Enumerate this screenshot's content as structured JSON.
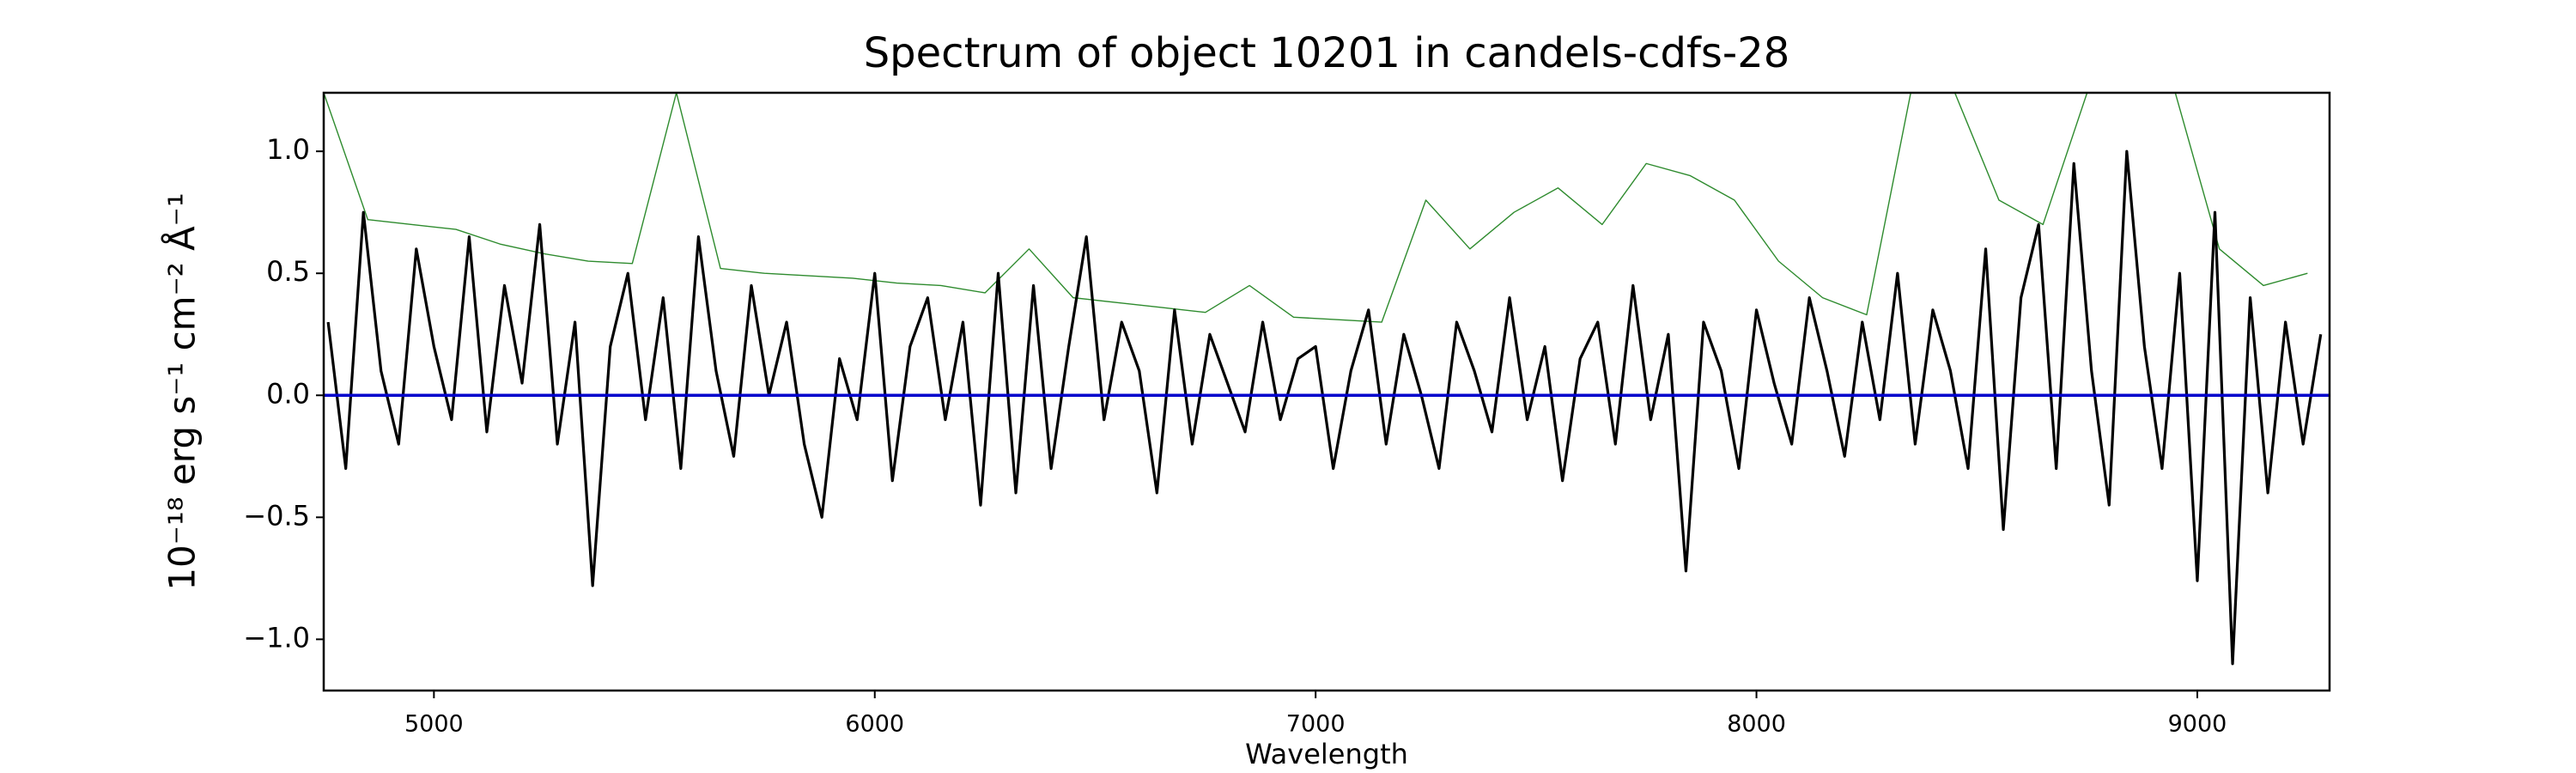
{
  "chart_data": {
    "type": "line",
    "title": "Spectrum of object 10201 in candels-cdfs-28",
    "x_label": "Wavelength",
    "y_label": "10⁻¹⁸ erg s⁻¹ cm⁻² Å⁻¹",
    "xlim": [
      4750,
      9300
    ],
    "ylim": [
      -1.21,
      1.24
    ],
    "xticks": [
      5000,
      6000,
      7000,
      8000,
      9000
    ],
    "yticks": [
      {
        "value": -1.0,
        "label": "−1.0"
      },
      {
        "value": -0.5,
        "label": "−0.5"
      },
      {
        "value": 0.0,
        "label": "0.0"
      },
      {
        "value": 0.5,
        "label": "0.5"
      },
      {
        "value": 1.0,
        "label": "1.0"
      }
    ],
    "series": [
      {
        "color": "#2e8b2e",
        "width": 1.4,
        "x": [
          4750,
          4850,
          4950,
          5050,
          5150,
          5250,
          5350,
          5450,
          5550,
          5650,
          5750,
          5850,
          5950,
          6050,
          6150,
          6250,
          6350,
          6450,
          6550,
          6650,
          6750,
          6850,
          6950,
          7050,
          7150,
          7250,
          7350,
          7450,
          7550,
          7650,
          7750,
          7850,
          7950,
          8050,
          8150,
          8250,
          8350,
          8450,
          8550,
          8650,
          8750,
          8850,
          8950,
          9050,
          9150,
          9250
        ],
        "values": [
          1.24,
          0.72,
          0.7,
          0.68,
          0.62,
          0.58,
          0.55,
          0.54,
          1.24,
          0.52,
          0.5,
          0.49,
          0.48,
          0.46,
          0.45,
          0.42,
          0.6,
          0.4,
          0.38,
          0.36,
          0.34,
          0.45,
          0.32,
          0.31,
          0.3,
          0.8,
          0.6,
          0.75,
          0.85,
          0.7,
          0.95,
          0.9,
          0.8,
          0.55,
          0.4,
          0.33,
          1.24,
          1.24,
          0.8,
          0.7,
          1.24,
          1.24,
          1.24,
          0.6,
          0.45,
          0.5
        ]
      },
      {
        "color": "#000000",
        "width": 3.2,
        "x": [
          4760,
          4800,
          4840,
          4880,
          4920,
          4960,
          5000,
          5040,
          5080,
          5120,
          5160,
          5200,
          5240,
          5280,
          5320,
          5360,
          5400,
          5440,
          5480,
          5520,
          5560,
          5600,
          5640,
          5680,
          5720,
          5760,
          5800,
          5840,
          5880,
          5920,
          5960,
          6000,
          6040,
          6080,
          6120,
          6160,
          6200,
          6240,
          6280,
          6320,
          6360,
          6400,
          6440,
          6480,
          6520,
          6560,
          6600,
          6640,
          6680,
          6720,
          6760,
          6800,
          6840,
          6880,
          6920,
          6960,
          7000,
          7040,
          7080,
          7120,
          7160,
          7200,
          7240,
          7280,
          7320,
          7360,
          7400,
          7440,
          7480,
          7520,
          7560,
          7600,
          7640,
          7680,
          7720,
          7760,
          7800,
          7840,
          7880,
          7920,
          7960,
          8000,
          8040,
          8080,
          8120,
          8160,
          8200,
          8240,
          8280,
          8320,
          8360,
          8400,
          8440,
          8480,
          8520,
          8560,
          8600,
          8640,
          8680,
          8720,
          8760,
          8800,
          8840,
          8880,
          8920,
          8960,
          9000,
          9040,
          9080,
          9120,
          9160,
          9200,
          9240,
          9280
        ],
        "values": [
          0.3,
          -0.3,
          0.75,
          0.1,
          -0.2,
          0.6,
          0.2,
          -0.1,
          0.65,
          -0.15,
          0.45,
          0.05,
          0.7,
          -0.2,
          0.3,
          -0.78,
          0.2,
          0.5,
          -0.1,
          0.4,
          -0.3,
          0.65,
          0.1,
          -0.25,
          0.45,
          0.0,
          0.3,
          -0.2,
          -0.5,
          0.15,
          -0.1,
          0.5,
          -0.35,
          0.2,
          0.4,
          -0.1,
          0.3,
          -0.45,
          0.5,
          -0.4,
          0.45,
          -0.3,
          0.2,
          0.65,
          -0.1,
          0.3,
          0.1,
          -0.4,
          0.35,
          -0.2,
          0.25,
          0.05,
          -0.15,
          0.3,
          -0.1,
          0.15,
          0.2,
          -0.3,
          0.1,
          0.35,
          -0.2,
          0.25,
          0.0,
          -0.3,
          0.3,
          0.1,
          -0.15,
          0.4,
          -0.1,
          0.2,
          -0.35,
          0.15,
          0.3,
          -0.2,
          0.45,
          -0.1,
          0.25,
          -0.72,
          0.3,
          0.1,
          -0.3,
          0.35,
          0.05,
          -0.2,
          0.4,
          0.1,
          -0.25,
          0.3,
          -0.1,
          0.5,
          -0.2,
          0.35,
          0.1,
          -0.3,
          0.6,
          -0.55,
          0.4,
          0.7,
          -0.3,
          0.95,
          0.1,
          -0.45,
          1.0,
          0.2,
          -0.3,
          0.5,
          -0.76,
          0.75,
          -1.1,
          0.4,
          -0.4,
          0.3,
          -0.2,
          0.25
        ]
      },
      {
        "color": "#0000cc",
        "width": 3.6,
        "x": [
          4750,
          9300
        ],
        "values": [
          0,
          0
        ]
      }
    ]
  }
}
